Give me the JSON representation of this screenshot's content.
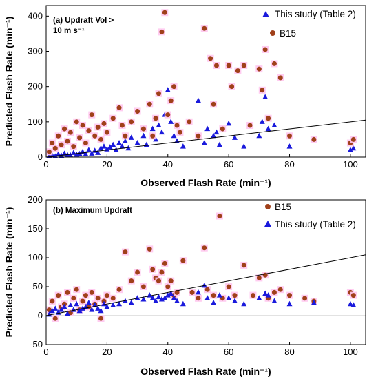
{
  "chart_data": [
    {
      "type": "scatter",
      "panel_label_lines": [
        "(a) Updraft Vol >",
        "10 m s⁻¹"
      ],
      "xlabel": "Observed Flash Rate (min⁻¹)",
      "ylabel": "Predicted Flash Rate (min⁻¹)",
      "xlim": [
        0,
        105
      ],
      "ylim": [
        0,
        430
      ],
      "xticks": [
        0,
        20,
        40,
        60,
        80,
        100
      ],
      "yticks": [
        0,
        100,
        200,
        300,
        400
      ],
      "grid": false,
      "legend_position": "top-right",
      "fit_line": {
        "x": [
          0,
          105
        ],
        "y": [
          0,
          105
        ]
      },
      "series": [
        {
          "name": "This study (Table 2)",
          "marker": "triangle",
          "color": "#1a1adc",
          "x": [
            1,
            2,
            3,
            4,
            5,
            6,
            7,
            8,
            9,
            10,
            11,
            12,
            13,
            14,
            15,
            16,
            17,
            18,
            19,
            20,
            21,
            22,
            23,
            24,
            25,
            26,
            27,
            28,
            30,
            32,
            33,
            35,
            36,
            37,
            38,
            39,
            40,
            41,
            42,
            43,
            45,
            50,
            52,
            53,
            55,
            56,
            57,
            60,
            62,
            65,
            70,
            71,
            72,
            73,
            75,
            80,
            88,
            100,
            101
          ],
          "y": [
            3,
            5,
            2,
            8,
            4,
            10,
            6,
            5,
            12,
            7,
            9,
            15,
            8,
            20,
            10,
            18,
            12,
            25,
            30,
            22,
            28,
            35,
            20,
            40,
            30,
            45,
            25,
            55,
            40,
            60,
            35,
            80,
            50,
            90,
            70,
            120,
            190,
            100,
            60,
            45,
            30,
            160,
            40,
            80,
            60,
            70,
            35,
            95,
            55,
            30,
            60,
            100,
            170,
            80,
            90,
            30,
            50,
            20,
            25
          ]
        },
        {
          "name": "B15",
          "marker": "circle",
          "color": "#a0401a",
          "x": [
            1,
            2,
            3,
            4,
            5,
            6,
            7,
            8,
            9,
            10,
            11,
            12,
            13,
            14,
            15,
            16,
            17,
            18,
            19,
            20,
            22,
            24,
            25,
            26,
            28,
            30,
            32,
            34,
            35,
            36,
            37,
            38,
            39,
            40,
            41,
            42,
            43,
            44,
            47,
            50,
            52,
            54,
            55,
            56,
            58,
            60,
            61,
            63,
            65,
            67,
            70,
            71,
            72,
            73,
            75,
            77,
            80,
            88,
            100,
            101
          ],
          "y": [
            15,
            40,
            25,
            60,
            35,
            80,
            45,
            70,
            30,
            100,
            55,
            90,
            40,
            75,
            120,
            60,
            85,
            50,
            95,
            70,
            110,
            140,
            90,
            60,
            100,
            130,
            80,
            150,
            60,
            110,
            180,
            355,
            410,
            120,
            160,
            200,
            90,
            70,
            100,
            60,
            365,
            280,
            150,
            260,
            80,
            260,
            200,
            245,
            260,
            90,
            250,
            190,
            305,
            110,
            265,
            225,
            60,
            50,
            40,
            50
          ]
        }
      ]
    },
    {
      "type": "scatter",
      "panel_label_lines": [
        "(b) Maximum Updraft"
      ],
      "xlabel": "Observed Flash Rate (min⁻¹)",
      "ylabel": "Predicted Flash Rate (min⁻¹)",
      "xlim": [
        0,
        105
      ],
      "ylim": [
        -50,
        200
      ],
      "xticks": [
        0,
        20,
        40,
        60,
        80,
        100
      ],
      "yticks": [
        -50,
        0,
        50,
        100,
        150,
        200
      ],
      "grid": false,
      "legend_position": "top-right",
      "fit_line": {
        "x": [
          0,
          105
        ],
        "y": [
          0,
          105
        ]
      },
      "series": [
        {
          "name": "B15",
          "marker": "circle",
          "color": "#a0401a",
          "x": [
            1,
            2,
            3,
            4,
            5,
            6,
            7,
            8,
            9,
            10,
            11,
            12,
            13,
            14,
            15,
            16,
            17,
            18,
            19,
            20,
            22,
            24,
            26,
            28,
            30,
            32,
            34,
            35,
            36,
            37,
            38,
            39,
            40,
            41,
            42,
            43,
            45,
            48,
            50,
            52,
            53,
            55,
            57,
            58,
            60,
            62,
            65,
            68,
            70,
            72,
            73,
            75,
            77,
            80,
            85,
            88,
            100,
            101
          ],
          "y": [
            10,
            25,
            -5,
            35,
            15,
            20,
            40,
            5,
            30,
            45,
            10,
            25,
            35,
            15,
            40,
            20,
            30,
            -5,
            25,
            35,
            30,
            45,
            110,
            60,
            75,
            50,
            115,
            80,
            65,
            60,
            75,
            90,
            50,
            60,
            35,
            40,
            95,
            40,
            30,
            117,
            45,
            35,
            172,
            30,
            50,
            35,
            87,
            35,
            65,
            70,
            30,
            40,
            45,
            35,
            30,
            25,
            40,
            35
          ]
        },
        {
          "name": "This study (Table 2)",
          "marker": "triangle",
          "color": "#1a1adc",
          "x": [
            1,
            2,
            3,
            4,
            5,
            6,
            7,
            8,
            9,
            10,
            11,
            12,
            13,
            14,
            15,
            16,
            17,
            18,
            19,
            20,
            22,
            24,
            26,
            28,
            30,
            32,
            34,
            35,
            36,
            37,
            38,
            39,
            40,
            41,
            42,
            43,
            45,
            50,
            52,
            53,
            55,
            57,
            60,
            62,
            65,
            70,
            72,
            73,
            75,
            80,
            88,
            100,
            101
          ],
          "y": [
            2,
            8,
            12,
            5,
            10,
            15,
            3,
            18,
            10,
            20,
            8,
            12,
            15,
            22,
            10,
            18,
            12,
            8,
            20,
            15,
            18,
            20,
            25,
            22,
            30,
            28,
            35,
            30,
            25,
            32,
            28,
            30,
            35,
            38,
            30,
            25,
            20,
            40,
            52,
            30,
            22,
            35,
            30,
            25,
            20,
            30,
            38,
            35,
            25,
            20,
            22,
            20,
            18
          ]
        }
      ]
    }
  ]
}
